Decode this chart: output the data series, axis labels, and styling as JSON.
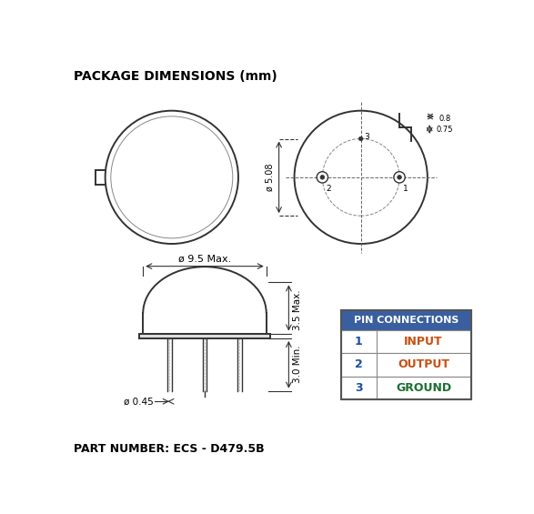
{
  "title": "PACKAGE DIMENSIONS (mm)",
  "part_number": "PART NUMBER: ECS - D479.5B",
  "bg_color": "#ffffff",
  "title_fontsize": 10,
  "blue_header": "#3a5fa0",
  "pin_connections": {
    "header": "PIN CONNECTIONS",
    "rows": [
      {
        "pin": "1",
        "name": "INPUT",
        "pin_color": "#1a4fa0",
        "name_color": "#c85010"
      },
      {
        "pin": "2",
        "name": "OUTPUT",
        "pin_color": "#1a4fa0",
        "name_color": "#c85010"
      },
      {
        "pin": "3",
        "name": "GROUND",
        "pin_color": "#1a4fa0",
        "name_color": "#1a7030"
      }
    ]
  }
}
